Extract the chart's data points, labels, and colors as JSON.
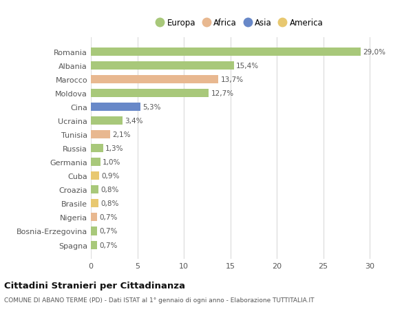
{
  "countries": [
    "Romania",
    "Albania",
    "Marocco",
    "Moldova",
    "Cina",
    "Ucraina",
    "Tunisia",
    "Russia",
    "Germania",
    "Cuba",
    "Croazia",
    "Brasile",
    "Nigeria",
    "Bosnia-Erzegovina",
    "Spagna"
  ],
  "values": [
    29.0,
    15.4,
    13.7,
    12.7,
    5.3,
    3.4,
    2.1,
    1.3,
    1.0,
    0.9,
    0.8,
    0.8,
    0.7,
    0.7,
    0.7
  ],
  "labels": [
    "29,0%",
    "15,4%",
    "13,7%",
    "12,7%",
    "5,3%",
    "3,4%",
    "2,1%",
    "1,3%",
    "1,0%",
    "0,9%",
    "0,8%",
    "0,8%",
    "0,7%",
    "0,7%",
    "0,7%"
  ],
  "continents": [
    "Europa",
    "Europa",
    "Africa",
    "Europa",
    "Asia",
    "Europa",
    "Africa",
    "Europa",
    "Europa",
    "America",
    "Europa",
    "America",
    "Africa",
    "Europa",
    "Europa"
  ],
  "continent_colors": {
    "Europa": "#a8c87a",
    "Africa": "#e8b890",
    "Asia": "#6888c8",
    "America": "#e8c870"
  },
  "legend_order": [
    "Europa",
    "Africa",
    "Asia",
    "America"
  ],
  "title": "Cittadini Stranieri per Cittadinanza",
  "subtitle": "COMUNE DI ABANO TERME (PD) - Dati ISTAT al 1° gennaio di ogni anno - Elaborazione TUTTITALIA.IT",
  "xlim": [
    0,
    32
  ],
  "xticks": [
    0,
    5,
    10,
    15,
    20,
    25,
    30
  ],
  "background_color": "#ffffff",
  "grid_color": "#e0e0e0",
  "bar_height": 0.6
}
